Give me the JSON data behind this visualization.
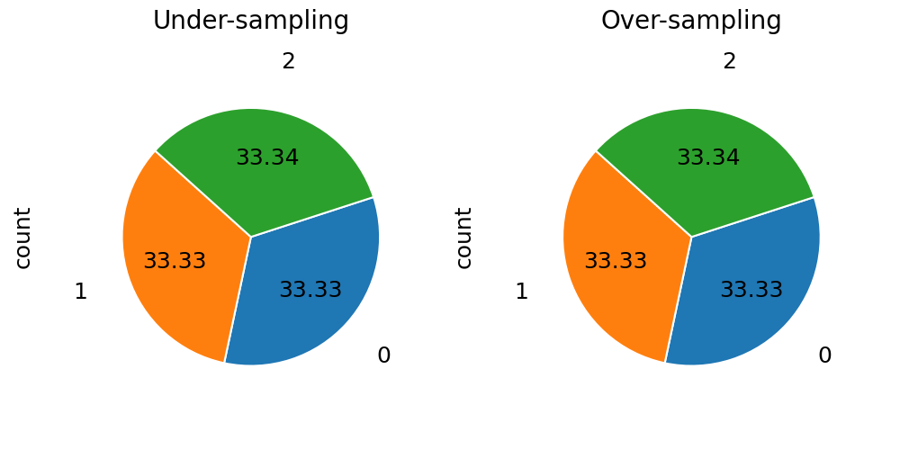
{
  "charts": [
    {
      "title": "Under-sampling"
    },
    {
      "title": "Over-sampling"
    }
  ],
  "sizes": [
    33.33,
    33.33,
    33.34
  ],
  "labels": [
    "0",
    "1",
    "2"
  ],
  "colors": [
    "#1f77b4",
    "#ff7f0e",
    "#2ca02c"
  ],
  "startangle": 18,
  "counterclock": false,
  "ylabel": "count",
  "figsize": [
    10.0,
    5.0
  ],
  "background_color": "#ffffff",
  "title_fontsize": 20,
  "label_fontsize": 18,
  "autopct_fontsize": 18,
  "ylabel_fontsize": 18,
  "label_distance": 1.18,
  "pct_distance": 0.62
}
